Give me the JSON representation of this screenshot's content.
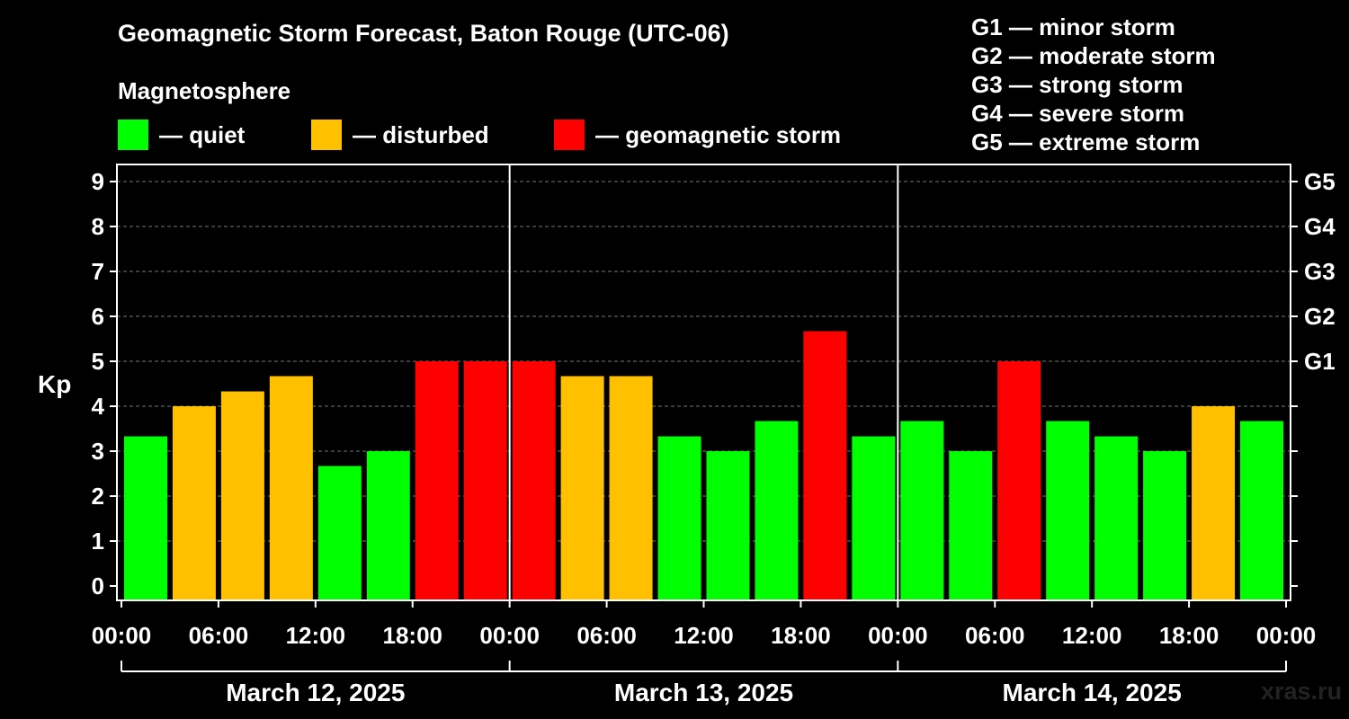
{
  "title": "Geomagnetic Storm Forecast, Baton Rouge (UTC-06)",
  "subtitle": "Magnetosphere",
  "legend": [
    {
      "label": "— quiet",
      "color": "#00ff00"
    },
    {
      "label": "— disturbed",
      "color": "#ffc000"
    },
    {
      "label": "— geomagnetic storm",
      "color": "#ff0000"
    }
  ],
  "g_scale": [
    "G1 — minor storm",
    "G2 — moderate storm",
    "G3 — strong storm",
    "G4 — severe storm",
    "G5 — extreme storm"
  ],
  "watermark": "xras.ru",
  "chart_data": {
    "type": "bar",
    "ylabel": "Kp",
    "ylim": [
      0,
      9
    ],
    "yticks": [
      0,
      1,
      2,
      3,
      4,
      5,
      6,
      7,
      8,
      9
    ],
    "right_axis_labels": [
      {
        "kp": 5,
        "label": "G1"
      },
      {
        "kp": 6,
        "label": "G2"
      },
      {
        "kp": 7,
        "label": "G3"
      },
      {
        "kp": 8,
        "label": "G4"
      },
      {
        "kp": 9,
        "label": "G5"
      }
    ],
    "grid": "horizontal dashed",
    "x_tick_labels": [
      "00:00",
      "06:00",
      "12:00",
      "18:00",
      "00:00",
      "06:00",
      "12:00",
      "18:00",
      "00:00",
      "06:00",
      "12:00",
      "18:00",
      "00:00"
    ],
    "days": [
      "March 12, 2025",
      "March 13, 2025",
      "March 14, 2025"
    ],
    "series": [
      {
        "values": [
          3.33,
          4.0,
          4.33,
          4.67,
          2.67,
          3.0,
          5.0,
          5.0,
          5.0,
          4.67,
          4.67,
          3.33,
          3.0,
          3.67,
          5.67,
          3.33,
          3.67,
          3.0,
          5.0,
          3.67,
          3.33,
          3.0,
          4.0,
          3.67
        ],
        "status": [
          "quiet",
          "disturbed",
          "disturbed",
          "disturbed",
          "quiet",
          "quiet",
          "storm",
          "storm",
          "storm",
          "disturbed",
          "disturbed",
          "quiet",
          "quiet",
          "quiet",
          "storm",
          "quiet",
          "quiet",
          "quiet",
          "storm",
          "quiet",
          "quiet",
          "quiet",
          "disturbed",
          "quiet"
        ]
      }
    ],
    "status_colors": {
      "quiet": "#00ff00",
      "disturbed": "#ffc000",
      "storm": "#ff0000"
    }
  }
}
